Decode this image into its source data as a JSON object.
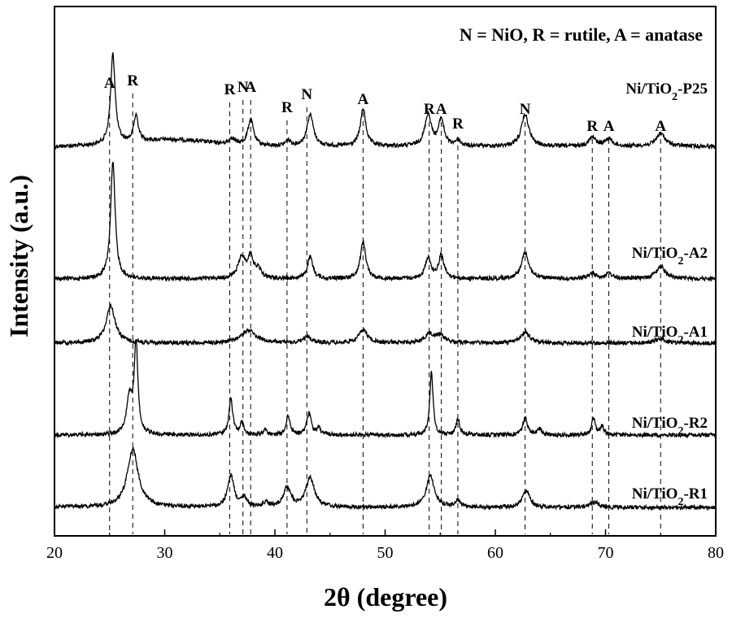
{
  "chart_data": {
    "type": "line",
    "xlabel": "2θ (degree)",
    "ylabel": "Intensity (a.u.)",
    "xlim": [
      20,
      80
    ],
    "xticks": [
      20,
      30,
      40,
      50,
      60,
      70,
      80
    ],
    "yticks_shown": false,
    "grid": false,
    "legend_text": "N = NiO, R = rutile, A = anatase",
    "legend_position": "top-right",
    "line_color": "#000000",
    "series": [
      {
        "name": "Ni/TiO2-P25",
        "label_main": "Ni/TiO",
        "label_sub": "2",
        "label_tail": "-P25",
        "baseline": 0,
        "peaks": [
          {
            "x": 25.3,
            "h": 0.85,
            "w": 0.25
          },
          {
            "x": 27.4,
            "h": 0.25,
            "w": 0.25
          },
          {
            "x": 36.1,
            "h": 0.06,
            "w": 0.3
          },
          {
            "x": 37.8,
            "h": 0.25,
            "w": 0.3
          },
          {
            "x": 41.2,
            "h": 0.05,
            "w": 0.3
          },
          {
            "x": 43.2,
            "h": 0.3,
            "w": 0.35
          },
          {
            "x": 48.0,
            "h": 0.35,
            "w": 0.3
          },
          {
            "x": 53.9,
            "h": 0.3,
            "w": 0.35
          },
          {
            "x": 55.1,
            "h": 0.25,
            "w": 0.3
          },
          {
            "x": 56.6,
            "h": 0.05,
            "w": 0.3
          },
          {
            "x": 62.7,
            "h": 0.3,
            "w": 0.4
          },
          {
            "x": 68.8,
            "h": 0.08,
            "w": 0.4
          },
          {
            "x": 70.3,
            "h": 0.07,
            "w": 0.4
          },
          {
            "x": 75.0,
            "h": 0.12,
            "w": 0.5
          }
        ],
        "hump": {
          "x": 30.5,
          "h": 0.42,
          "w": 3.5
        }
      },
      {
        "name": "Ni/TiO2-A2",
        "label_main": "Ni/TiO",
        "label_sub": "2",
        "label_tail": "-A2",
        "baseline": 1,
        "peaks": [
          {
            "x": 25.3,
            "h": 1.1,
            "w": 0.25
          },
          {
            "x": 37.0,
            "h": 0.2,
            "w": 0.4
          },
          {
            "x": 37.8,
            "h": 0.2,
            "w": 0.3
          },
          {
            "x": 38.5,
            "h": 0.08,
            "w": 0.3
          },
          {
            "x": 43.2,
            "h": 0.2,
            "w": 0.3
          },
          {
            "x": 48.0,
            "h": 0.35,
            "w": 0.3
          },
          {
            "x": 53.9,
            "h": 0.2,
            "w": 0.3
          },
          {
            "x": 55.1,
            "h": 0.22,
            "w": 0.3
          },
          {
            "x": 62.7,
            "h": 0.25,
            "w": 0.4
          },
          {
            "x": 68.8,
            "h": 0.05,
            "w": 0.4
          },
          {
            "x": 70.3,
            "h": 0.05,
            "w": 0.4
          },
          {
            "x": 75.0,
            "h": 0.12,
            "w": 0.5
          }
        ]
      },
      {
        "name": "Ni/TiO2-A1",
        "label_main": "Ni/TiO",
        "label_sub": "2",
        "label_tail": "-A1",
        "baseline": 2,
        "peaks": [
          {
            "x": 25.1,
            "h": 0.35,
            "w": 0.5
          },
          {
            "x": 37.6,
            "h": 0.12,
            "w": 0.8
          },
          {
            "x": 43.0,
            "h": 0.06,
            "w": 0.4
          },
          {
            "x": 48.0,
            "h": 0.12,
            "w": 0.5
          },
          {
            "x": 54.0,
            "h": 0.08,
            "w": 0.5
          },
          {
            "x": 55.0,
            "h": 0.07,
            "w": 0.5
          },
          {
            "x": 62.7,
            "h": 0.1,
            "w": 0.5
          },
          {
            "x": 75.0,
            "h": 0.04,
            "w": 0.6
          }
        ]
      },
      {
        "name": "Ni/TiO2-R2",
        "label_main": "Ni/TiO",
        "label_sub": "2",
        "label_tail": "-R2",
        "baseline": 3,
        "peaks": [
          {
            "x": 26.8,
            "h": 0.35,
            "w": 0.3
          },
          {
            "x": 27.4,
            "h": 0.85,
            "w": 0.2
          },
          {
            "x": 36.0,
            "h": 0.35,
            "w": 0.2
          },
          {
            "x": 37.0,
            "h": 0.12,
            "w": 0.2
          },
          {
            "x": 39.1,
            "h": 0.05,
            "w": 0.2
          },
          {
            "x": 41.2,
            "h": 0.18,
            "w": 0.2
          },
          {
            "x": 43.1,
            "h": 0.2,
            "w": 0.25
          },
          {
            "x": 44.0,
            "h": 0.06,
            "w": 0.2
          },
          {
            "x": 54.2,
            "h": 0.6,
            "w": 0.18
          },
          {
            "x": 56.6,
            "h": 0.15,
            "w": 0.2
          },
          {
            "x": 62.7,
            "h": 0.16,
            "w": 0.25
          },
          {
            "x": 64.0,
            "h": 0.06,
            "w": 0.2
          },
          {
            "x": 68.9,
            "h": 0.16,
            "w": 0.2
          },
          {
            "x": 69.7,
            "h": 0.08,
            "w": 0.2
          }
        ]
      },
      {
        "name": "Ni/TiO2-R1",
        "label_main": "Ni/TiO",
        "label_sub": "2",
        "label_tail": "-R1",
        "baseline": 4,
        "peaks": [
          {
            "x": 27.1,
            "h": 0.55,
            "w": 0.6
          },
          {
            "x": 36.0,
            "h": 0.3,
            "w": 0.35
          },
          {
            "x": 37.2,
            "h": 0.08,
            "w": 0.3
          },
          {
            "x": 39.2,
            "h": 0.04,
            "w": 0.3
          },
          {
            "x": 41.1,
            "h": 0.18,
            "w": 0.4
          },
          {
            "x": 43.2,
            "h": 0.28,
            "w": 0.45
          },
          {
            "x": 54.1,
            "h": 0.3,
            "w": 0.45
          },
          {
            "x": 56.6,
            "h": 0.06,
            "w": 0.3
          },
          {
            "x": 62.8,
            "h": 0.16,
            "w": 0.4
          },
          {
            "x": 69.0,
            "h": 0.05,
            "w": 0.4
          }
        ]
      }
    ],
    "peak_markers": [
      {
        "letter": "A",
        "x": 25.0
      },
      {
        "letter": "R",
        "x": 27.1
      },
      {
        "letter": "R",
        "x": 35.9
      },
      {
        "letter": "N",
        "x": 37.1
      },
      {
        "letter": "A",
        "x": 37.8
      },
      {
        "letter": "R",
        "x": 41.1
      },
      {
        "letter": "N",
        "x": 42.9
      },
      {
        "letter": "A",
        "x": 48.0
      },
      {
        "letter": "R",
        "x": 54.0
      },
      {
        "letter": "A",
        "x": 55.1
      },
      {
        "letter": "R",
        "x": 56.6
      },
      {
        "letter": "N",
        "x": 62.7
      },
      {
        "letter": "R",
        "x": 68.8
      },
      {
        "letter": "A",
        "x": 70.3
      },
      {
        "letter": "A",
        "x": 75.0
      }
    ]
  }
}
